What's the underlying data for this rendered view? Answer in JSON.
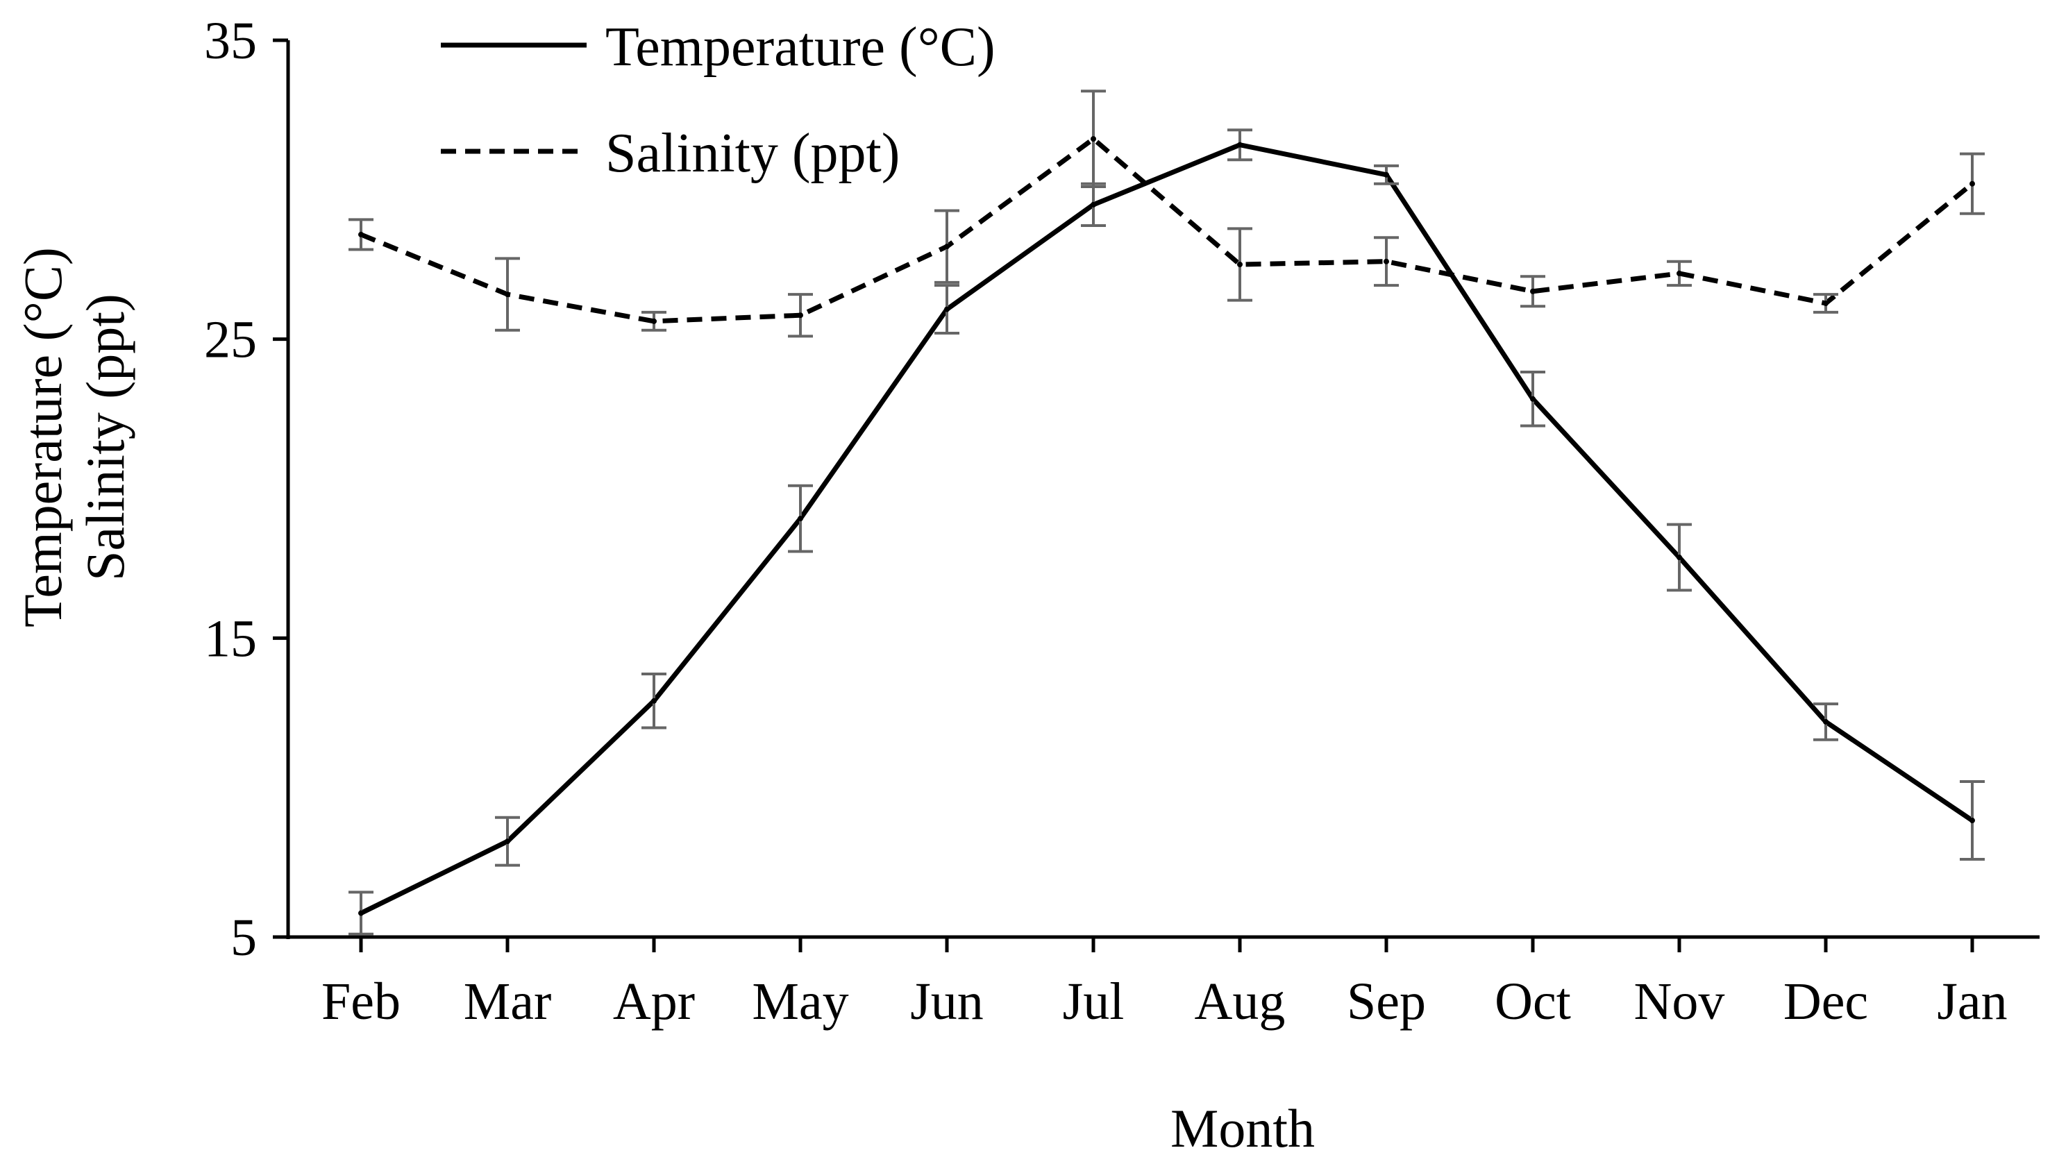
{
  "chart_data": {
    "type": "line",
    "title": "",
    "xlabel": "Month",
    "ylabel": [
      "Temperature (°C)",
      "Salinity (ppt)"
    ],
    "ylim": [
      5,
      35
    ],
    "yticks": [
      "35",
      "25",
      "15",
      "5"
    ],
    "categories": [
      "Feb",
      "Mar",
      "Apr",
      "May",
      "Jun",
      "Jul",
      "Aug",
      "Sep",
      "Oct",
      "Nov",
      "Dec",
      "Jan"
    ],
    "series": [
      {
        "name": "Temperature (°C)",
        "style": "solid",
        "values": [
          5.8,
          8.2,
          12.9,
          19.0,
          26.0,
          29.5,
          31.5,
          30.5,
          23.0,
          17.7,
          12.2,
          8.9
        ],
        "errors": [
          0.7,
          0.8,
          0.9,
          1.1,
          0.8,
          0.7,
          0.5,
          0.3,
          0.9,
          1.1,
          0.6,
          1.3
        ]
      },
      {
        "name": "Salinity (ppt)",
        "style": "dashed",
        "values": [
          28.5,
          26.5,
          25.6,
          25.8,
          28.1,
          31.7,
          27.5,
          27.6,
          26.6,
          27.2,
          26.2,
          30.2
        ],
        "errors": [
          0.5,
          1.2,
          0.3,
          0.7,
          1.2,
          1.6,
          1.2,
          0.8,
          0.5,
          0.4,
          0.3,
          1.0
        ]
      }
    ],
    "legend_position": "top-left"
  },
  "colors": {
    "line": "#000000",
    "error_bar": "#666666",
    "axis": "#000000"
  }
}
